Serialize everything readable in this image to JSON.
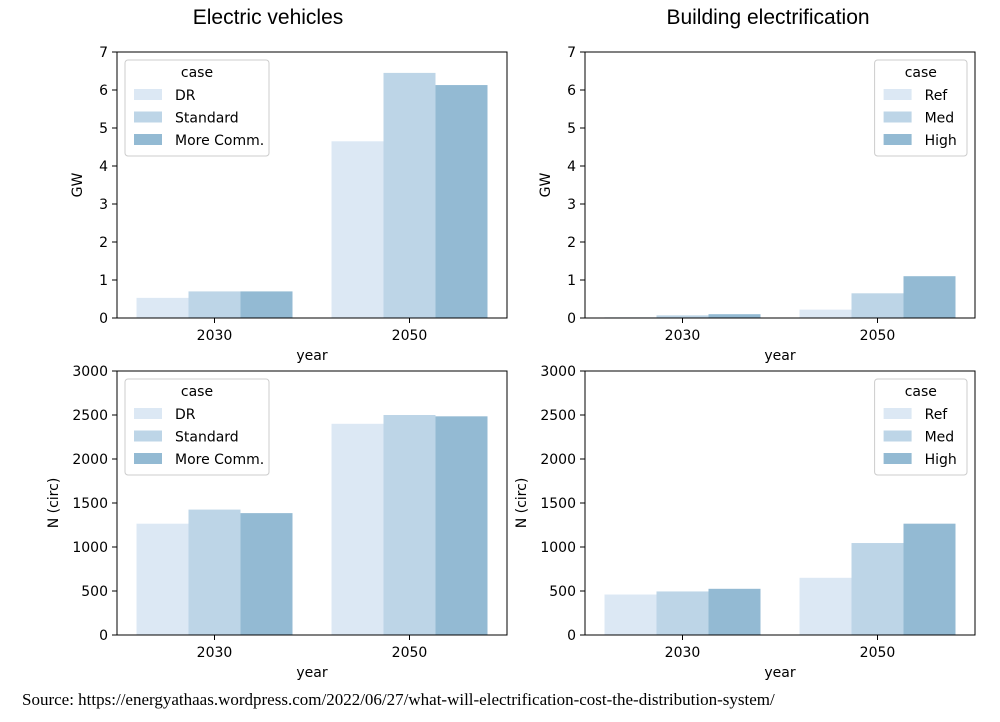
{
  "source_text": "Source: https://energyathaas.wordpress.com/2022/06/27/what-will-electrification-cost-the-distribution-system/",
  "column_titles": [
    "Electric vehicles",
    "Building electrification"
  ],
  "colors": [
    "#dce8f4",
    "#bdd5e7",
    "#93bad3"
  ],
  "chart_data": [
    {
      "type": "bar",
      "title": "Electric vehicles",
      "xlabel": "year",
      "ylabel": "GW",
      "categories": [
        "2030",
        "2050"
      ],
      "ylim": [
        0,
        7
      ],
      "yticks": [
        "0",
        "1",
        "2",
        "3",
        "4",
        "5",
        "6",
        "7"
      ],
      "legend_title": "case",
      "legend_position": "upper-left",
      "series": [
        {
          "name": "DR",
          "values": [
            0.53,
            4.65
          ]
        },
        {
          "name": "Standard",
          "values": [
            0.7,
            6.45
          ]
        },
        {
          "name": "More Comm.",
          "values": [
            0.7,
            6.13
          ]
        }
      ]
    },
    {
      "type": "bar",
      "title": "Building electrification",
      "xlabel": "year",
      "ylabel": "GW",
      "categories": [
        "2030",
        "2050"
      ],
      "ylim": [
        0,
        7
      ],
      "yticks": [
        "0",
        "1",
        "2",
        "3",
        "4",
        "5",
        "6",
        "7"
      ],
      "legend_title": "case",
      "legend_position": "upper-right",
      "series": [
        {
          "name": "Ref",
          "values": [
            0.02,
            0.22
          ]
        },
        {
          "name": "Med",
          "values": [
            0.07,
            0.65
          ]
        },
        {
          "name": "High",
          "values": [
            0.1,
            1.1
          ]
        }
      ]
    },
    {
      "type": "bar",
      "title": "",
      "xlabel": "year",
      "ylabel": "N (circ)",
      "categories": [
        "2030",
        "2050"
      ],
      "ylim": [
        0,
        3000
      ],
      "yticks": [
        "0",
        "500",
        "1000",
        "1500",
        "2000",
        "2500",
        "3000"
      ],
      "legend_title": "case",
      "legend_position": "upper-left",
      "series": [
        {
          "name": "DR",
          "values": [
            1265,
            2400
          ]
        },
        {
          "name": "Standard",
          "values": [
            1425,
            2500
          ]
        },
        {
          "name": "More Comm.",
          "values": [
            1385,
            2485
          ]
        }
      ]
    },
    {
      "type": "bar",
      "title": "",
      "xlabel": "year",
      "ylabel": "N (circ)",
      "categories": [
        "2030",
        "2050"
      ],
      "ylim": [
        0,
        3000
      ],
      "yticks": [
        "0",
        "500",
        "1000",
        "1500",
        "2000",
        "2500",
        "3000"
      ],
      "legend_title": "case",
      "legend_position": "upper-right",
      "series": [
        {
          "name": "Ref",
          "values": [
            460,
            650
          ]
        },
        {
          "name": "Med",
          "values": [
            495,
            1045
          ]
        },
        {
          "name": "High",
          "values": [
            525,
            1265
          ]
        }
      ]
    }
  ]
}
